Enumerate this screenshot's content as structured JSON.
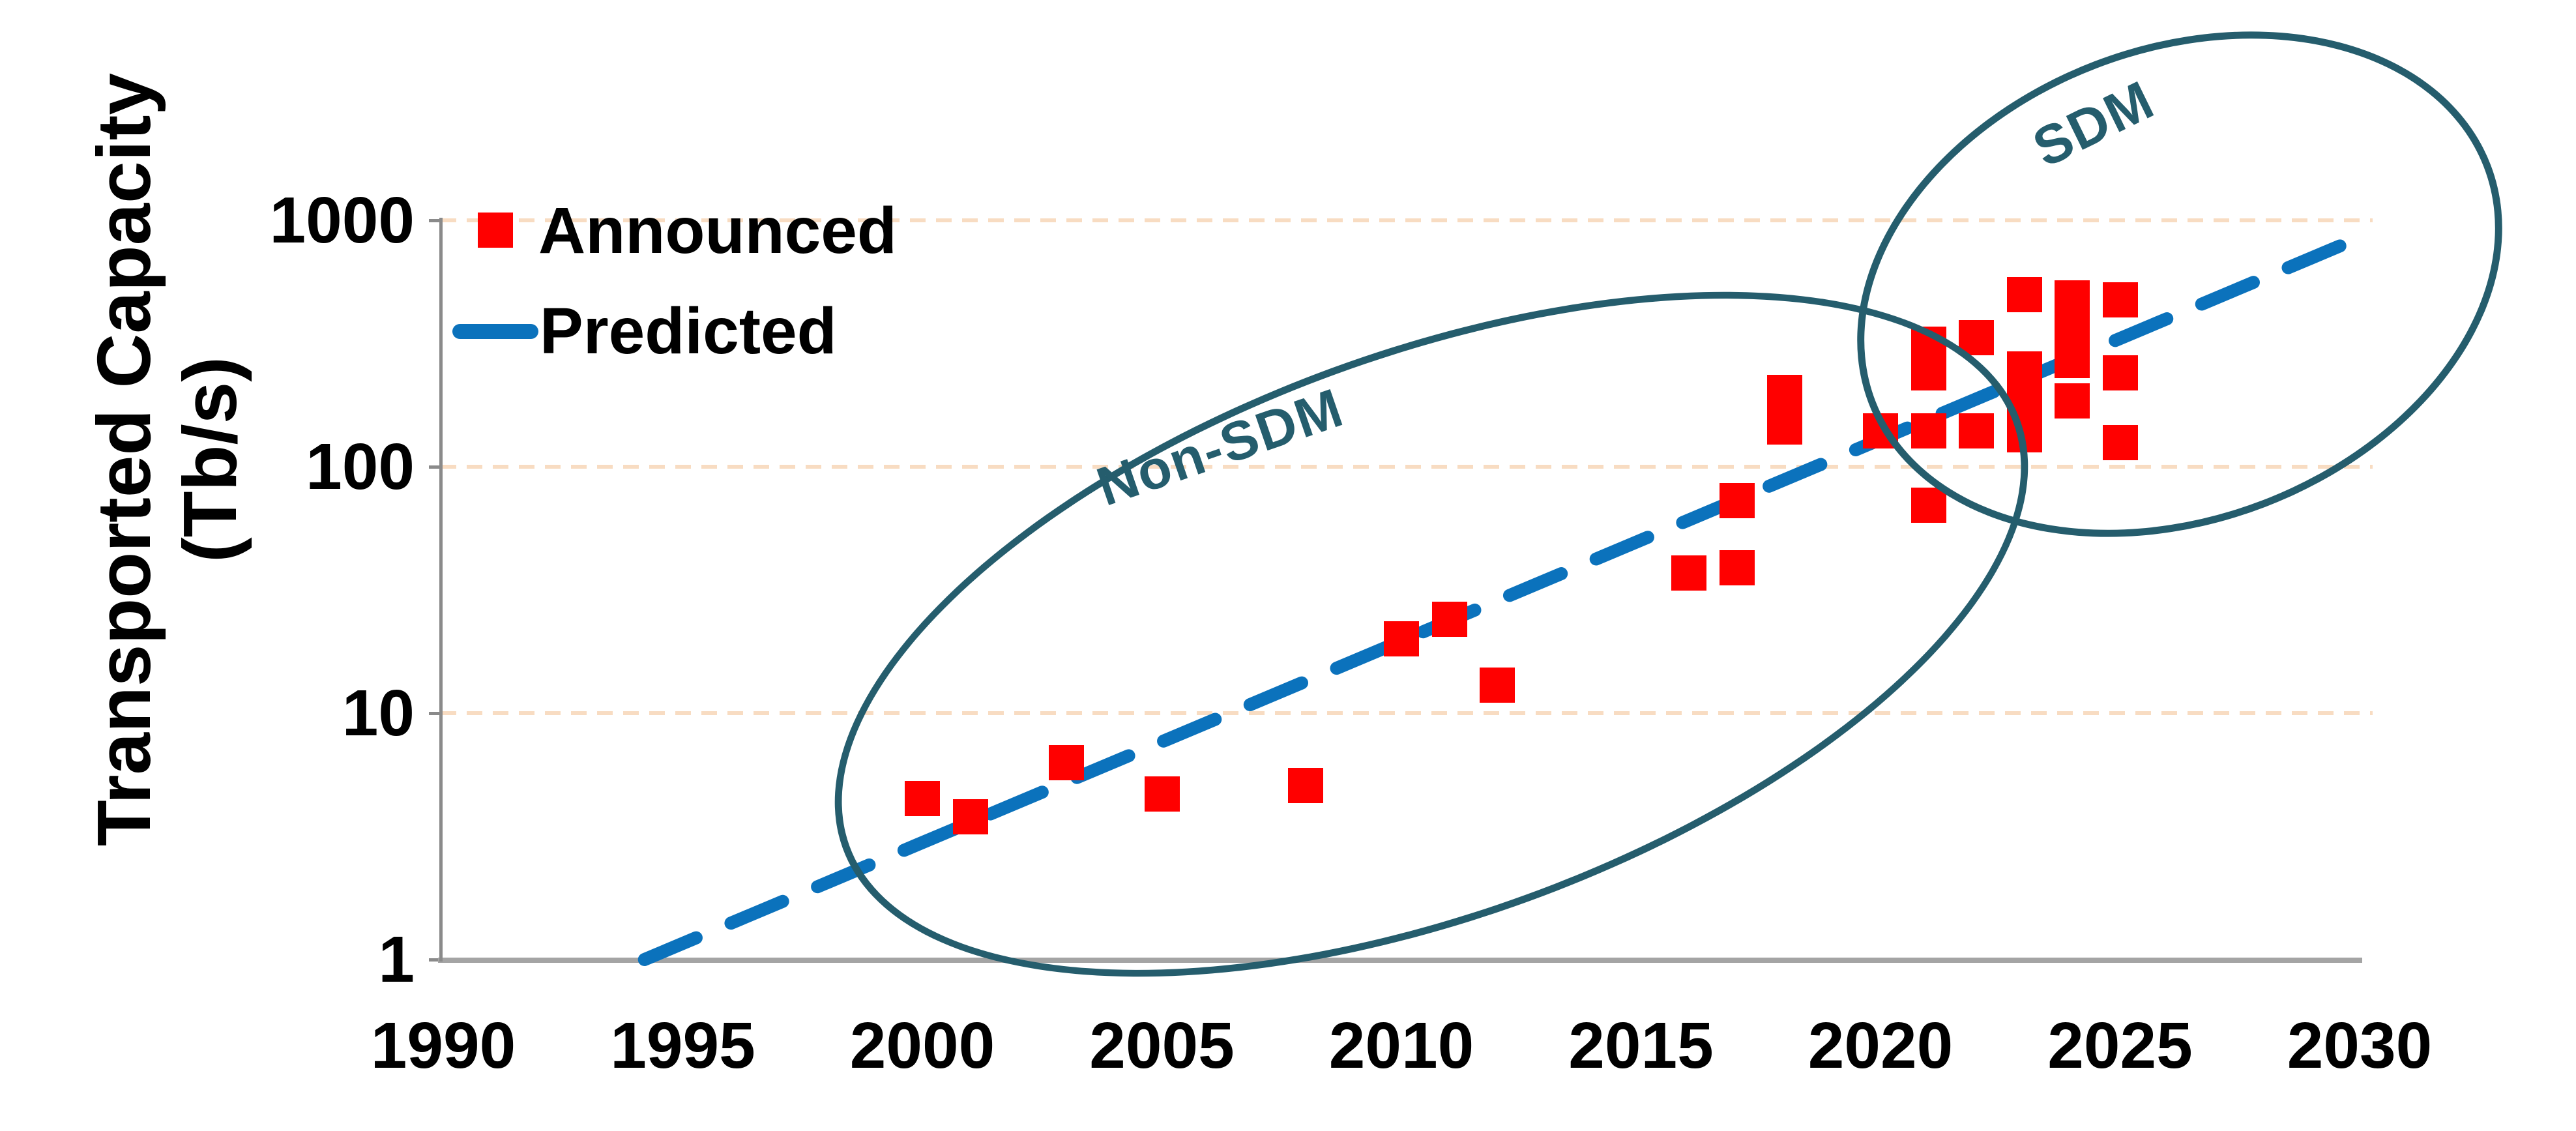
{
  "chart_data": {
    "type": "scatter",
    "title": "",
    "ylabel_line1": "Transported Capacity",
    "ylabel_line2": "(Tb/s)",
    "xlabel": "",
    "x_ticks": [
      "1990",
      "1995",
      "2000",
      "2005",
      "2010",
      "2015",
      "2020",
      "2025",
      "2030"
    ],
    "x_tick_years": [
      1990,
      1995,
      2000,
      2005,
      2010,
      2015,
      2020,
      2025,
      2030
    ],
    "y_ticks": [
      "1000",
      "100",
      "10",
      "1"
    ],
    "y_tick_values": [
      1000,
      100,
      10,
      1
    ],
    "xlim": [
      1990,
      2032
    ],
    "ylim": [
      1,
      1000
    ],
    "y_scale": "log",
    "grid": "horizontal dotted lines at log decades",
    "legend_position": "top-left inside plot",
    "series": [
      {
        "name": "Announced",
        "type": "scatter",
        "marker": "square",
        "color": "#ff0000",
        "points": [
          [
            2000,
            4.5
          ],
          [
            2001,
            3.8
          ],
          [
            2003,
            6.3
          ],
          [
            2005,
            4.7
          ],
          [
            2008,
            5.1
          ],
          [
            2010,
            20
          ],
          [
            2011,
            24
          ],
          [
            2012,
            13
          ],
          [
            2016,
            37
          ],
          [
            2017,
            39
          ],
          [
            2017,
            73
          ],
          [
            2018,
            145
          ],
          [
            2018,
            200
          ],
          [
            2020,
            140
          ],
          [
            2021,
            70
          ],
          [
            2021,
            140
          ],
          [
            2021,
            240
          ],
          [
            2021,
            315
          ],
          [
            2022,
            140
          ],
          [
            2022,
            335
          ],
          [
            2023,
            135
          ],
          [
            2023,
            185
          ],
          [
            2023,
            250
          ],
          [
            2023,
            500
          ],
          [
            2024,
            185
          ],
          [
            2024,
            270
          ],
          [
            2024,
            360
          ],
          [
            2024,
            485
          ],
          [
            2025,
            125
          ],
          [
            2025,
            240
          ],
          [
            2025,
            475
          ]
        ]
      },
      {
        "name": "Predicted",
        "type": "line",
        "style": "dashed",
        "color": "#0b72bc",
        "endpoints": [
          [
            1994.2,
            1.0
          ],
          [
            2030.3,
            900
          ]
        ]
      }
    ],
    "annotations": [
      {
        "text": "Non-SDM",
        "group": "ellipse around 1999-2021 data"
      },
      {
        "text": "SDM",
        "group": "ellipse around 2021-2030 data"
      }
    ],
    "legend": [
      {
        "label": "Announced",
        "marker": "red-square"
      },
      {
        "label": "Predicted",
        "marker": "blue-line"
      }
    ],
    "colors": {
      "announced": "#ff0000",
      "predicted": "#0b72bc",
      "ellipse": "#255d6d",
      "gridline": "#f8dcc2",
      "axis": "#a4a4a4",
      "text": "#000000"
    }
  }
}
